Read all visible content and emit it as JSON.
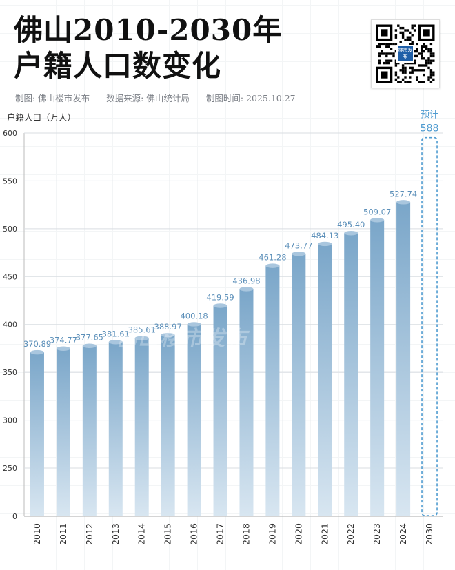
{
  "header": {
    "title_line1": "佛山2010-2030年",
    "title_line2": "户籍人口数变化",
    "credit": "制图: 佛山楼市发布",
    "source": "数据来源: 佛山统计局",
    "date": "制图时间: 2025.10.27"
  },
  "qr": {
    "logo_text": "楼市发布"
  },
  "watermark": "佛山楼市发布",
  "colors": {
    "bar_top": "#7aa6c9",
    "bar_bottom": "#d8e6f1",
    "label": "#5b8fb9",
    "forecast": "#4f9bd0"
  },
  "chart_data": {
    "type": "bar",
    "ylabel": "户籍人口（万人）",
    "ylim": [
      0,
      600
    ],
    "yticks": [
      0,
      250,
      300,
      350,
      400,
      450,
      500,
      550,
      600
    ],
    "grid": true,
    "categories": [
      "2010",
      "2011",
      "2012",
      "2013",
      "2014",
      "2015",
      "2016",
      "2017",
      "2018",
      "2019",
      "2020",
      "2021",
      "2022",
      "2023",
      "2024",
      "2030"
    ],
    "values": [
      370.89,
      374.77,
      377.65,
      381.61,
      385.61,
      388.97,
      400.18,
      419.59,
      436.98,
      461.28,
      473.77,
      484.13,
      495.4,
      509.07,
      527.74,
      588
    ],
    "value_labels": [
      "370.89",
      "374.77",
      "377.65",
      "381.61",
      "385.61",
      "388.97",
      "400.18",
      "419.59",
      "436.98",
      "461.28",
      "473.77",
      "484.13",
      "495.40",
      "509.07",
      "527.74",
      "588"
    ],
    "forecast_label": "预计",
    "forecast_index": 15
  }
}
